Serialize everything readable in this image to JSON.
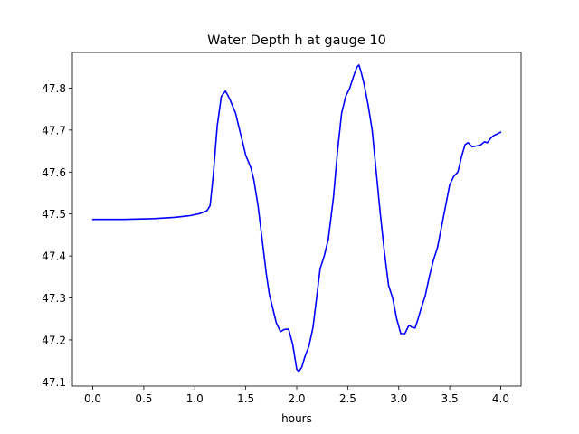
{
  "chart_data": {
    "type": "line",
    "title": "Water Depth h at gauge 10",
    "xlabel": "hours",
    "ylabel": "",
    "xlim": [
      -0.2,
      4.2
    ],
    "ylim": [
      47.09,
      47.885
    ],
    "x_ticks": [
      0.0,
      0.5,
      1.0,
      1.5,
      2.0,
      2.5,
      3.0,
      3.5,
      4.0
    ],
    "x_tick_labels": [
      "0.0",
      "0.5",
      "1.0",
      "1.5",
      "2.0",
      "2.5",
      "3.0",
      "3.5",
      "4.0"
    ],
    "y_ticks": [
      47.1,
      47.2,
      47.3,
      47.4,
      47.5,
      47.6,
      47.7,
      47.8
    ],
    "y_tick_labels": [
      "47.1",
      "47.2",
      "47.3",
      "47.4",
      "47.5",
      "47.6",
      "47.7",
      "47.8"
    ],
    "grid": false,
    "series": [
      {
        "color": "#0000ff",
        "x": [
          0.0,
          0.3,
          0.6,
          0.8,
          0.95,
          1.05,
          1.12,
          1.15,
          1.18,
          1.22,
          1.26,
          1.3,
          1.32,
          1.35,
          1.4,
          1.43,
          1.47,
          1.5,
          1.55,
          1.58,
          1.62,
          1.66,
          1.7,
          1.73,
          1.77,
          1.8,
          1.84,
          1.88,
          1.92,
          1.96,
          2.0,
          2.02,
          2.05,
          2.08,
          2.12,
          2.16,
          2.2,
          2.23,
          2.27,
          2.31,
          2.36,
          2.4,
          2.44,
          2.48,
          2.52,
          2.56,
          2.59,
          2.61,
          2.63,
          2.66,
          2.7,
          2.74,
          2.78,
          2.82,
          2.86,
          2.9,
          2.94,
          2.98,
          3.02,
          3.06,
          3.1,
          3.13,
          3.16,
          3.19,
          3.22,
          3.26,
          3.3,
          3.34,
          3.38,
          3.42,
          3.46,
          3.5,
          3.54,
          3.58,
          3.62,
          3.65,
          3.68,
          3.72,
          3.76,
          3.8,
          3.84,
          3.87,
          3.9,
          3.93,
          3.96,
          4.0
        ],
        "y": [
          47.487,
          47.487,
          47.489,
          47.492,
          47.496,
          47.501,
          47.508,
          47.52,
          47.59,
          47.71,
          47.78,
          47.793,
          47.785,
          47.77,
          47.74,
          47.71,
          47.67,
          47.64,
          47.61,
          47.58,
          47.52,
          47.44,
          47.36,
          47.31,
          47.27,
          47.24,
          47.22,
          47.225,
          47.226,
          47.19,
          47.13,
          47.125,
          47.135,
          47.16,
          47.185,
          47.23,
          47.31,
          47.37,
          47.4,
          47.44,
          47.54,
          47.65,
          47.74,
          47.78,
          47.8,
          47.83,
          47.85,
          47.855,
          47.84,
          47.81,
          47.76,
          47.7,
          47.6,
          47.5,
          47.41,
          47.33,
          47.3,
          47.25,
          47.215,
          47.215,
          47.235,
          47.23,
          47.228,
          47.25,
          47.275,
          47.305,
          47.35,
          47.39,
          47.42,
          47.47,
          47.52,
          47.57,
          47.59,
          47.6,
          47.64,
          47.665,
          47.67,
          47.66,
          47.662,
          47.664,
          47.672,
          47.67,
          47.68,
          47.687,
          47.69,
          47.695
        ]
      }
    ]
  }
}
